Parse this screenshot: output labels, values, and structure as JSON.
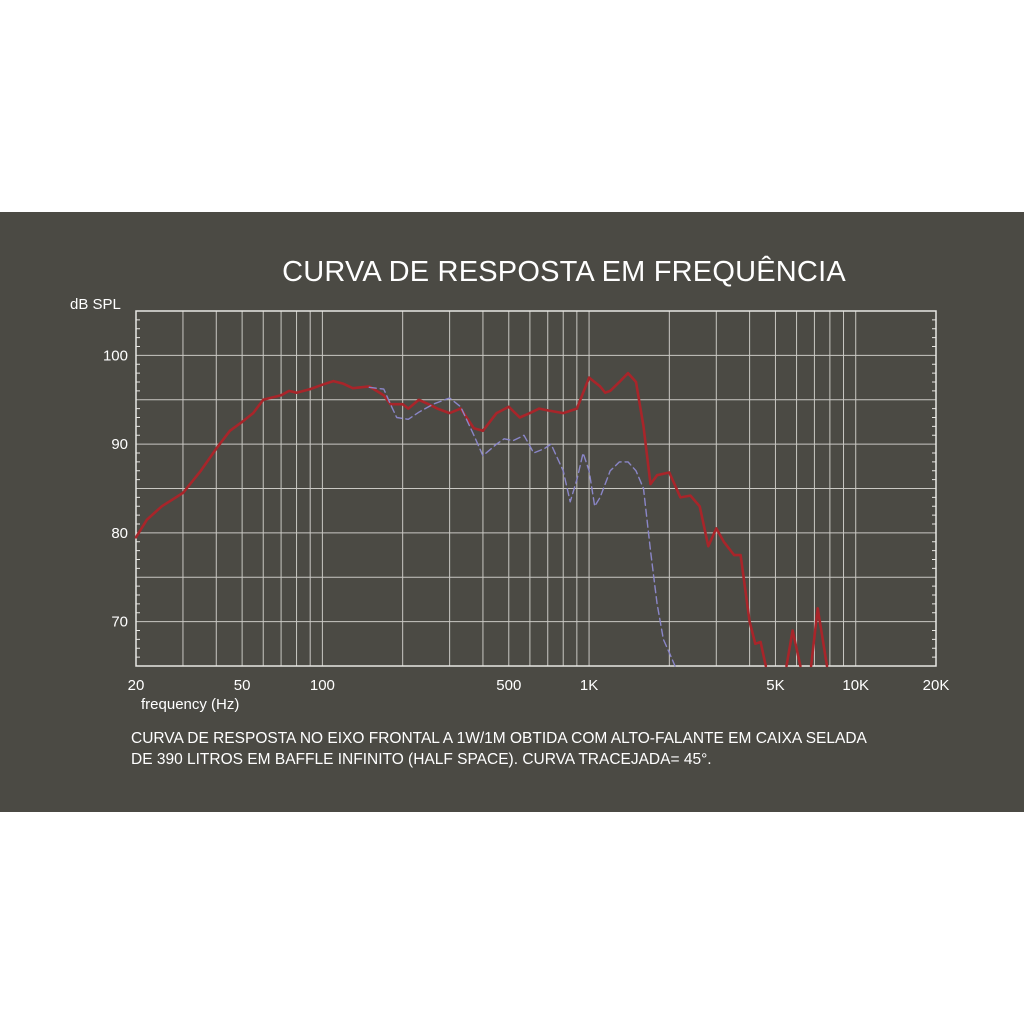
{
  "chart_data": {
    "type": "line",
    "title": "CURVA DE RESPOSTA EM FREQUÊNCIA",
    "xlabel": "frequency (Hz)",
    "ylabel": "dB SPL",
    "x_scale": "log",
    "xlim": [
      20,
      20000
    ],
    "ylim": [
      65,
      105
    ],
    "grid": true,
    "x_ticks": [
      {
        "value": 20,
        "label": "20"
      },
      {
        "value": 50,
        "label": "50"
      },
      {
        "value": 100,
        "label": "100"
      },
      {
        "value": 500,
        "label": "500"
      },
      {
        "value": 1000,
        "label": "1K"
      },
      {
        "value": 5000,
        "label": "5K"
      },
      {
        "value": 10000,
        "label": "10K"
      },
      {
        "value": 20000,
        "label": "20K"
      }
    ],
    "y_ticks": [
      {
        "value": 70,
        "label": "70"
      },
      {
        "value": 80,
        "label": "80"
      },
      {
        "value": 90,
        "label": "90"
      },
      {
        "value": 100,
        "label": "100"
      }
    ],
    "series": [
      {
        "style": "solid",
        "color": "#a8252a",
        "points": [
          [
            20,
            79.5
          ],
          [
            22,
            81.5
          ],
          [
            25,
            83
          ],
          [
            30,
            84.5
          ],
          [
            35,
            87
          ],
          [
            40,
            89.5
          ],
          [
            45,
            91.5
          ],
          [
            50,
            92.5
          ],
          [
            55,
            93.5
          ],
          [
            60,
            95
          ],
          [
            70,
            95.5
          ],
          [
            75,
            96
          ],
          [
            80,
            95.8
          ],
          [
            90,
            96.2
          ],
          [
            100,
            96.7
          ],
          [
            110,
            97.1
          ],
          [
            120,
            96.8
          ],
          [
            130,
            96.3
          ],
          [
            150,
            96.5
          ],
          [
            170,
            95.5
          ],
          [
            180,
            94.5
          ],
          [
            200,
            94.5
          ],
          [
            210,
            94
          ],
          [
            230,
            95
          ],
          [
            250,
            94.5
          ],
          [
            270,
            94
          ],
          [
            300,
            93.5
          ],
          [
            330,
            94
          ],
          [
            370,
            91.8
          ],
          [
            400,
            91.5
          ],
          [
            450,
            93.5
          ],
          [
            500,
            94.2
          ],
          [
            550,
            93
          ],
          [
            600,
            93.5
          ],
          [
            650,
            94
          ],
          [
            700,
            93.8
          ],
          [
            800,
            93.5
          ],
          [
            900,
            94
          ],
          [
            1000,
            97.5
          ],
          [
            1100,
            96.5
          ],
          [
            1150,
            95.8
          ],
          [
            1200,
            96
          ],
          [
            1300,
            97
          ],
          [
            1400,
            98
          ],
          [
            1500,
            97
          ],
          [
            1600,
            92
          ],
          [
            1700,
            85.5
          ],
          [
            1800,
            86.5
          ],
          [
            2000,
            86.8
          ],
          [
            2200,
            84
          ],
          [
            2400,
            84.2
          ],
          [
            2600,
            83
          ],
          [
            2800,
            78.5
          ],
          [
            3000,
            80.5
          ],
          [
            3200,
            79
          ],
          [
            3500,
            77.5
          ],
          [
            3700,
            77.5
          ],
          [
            4000,
            70
          ],
          [
            4200,
            67.5
          ],
          [
            4400,
            67.7
          ],
          [
            4600,
            65
          ]
        ]
      },
      {
        "style": "solid",
        "color": "#a8252a",
        "points": [
          [
            5500,
            65
          ],
          [
            5800,
            69
          ],
          [
            6200,
            65
          ]
        ]
      },
      {
        "style": "solid",
        "color": "#a8252a",
        "points": [
          [
            6800,
            65
          ],
          [
            7200,
            71.5
          ],
          [
            7800,
            65
          ]
        ]
      },
      {
        "style": "dashed",
        "color": "#8a86c8",
        "points": [
          [
            150,
            96.4
          ],
          [
            170,
            96.2
          ],
          [
            180,
            94.5
          ],
          [
            190,
            93
          ],
          [
            210,
            92.8
          ],
          [
            230,
            93.6
          ],
          [
            260,
            94.5
          ],
          [
            300,
            95.2
          ],
          [
            330,
            94.2
          ],
          [
            370,
            91
          ],
          [
            400,
            88.7
          ],
          [
            450,
            90
          ],
          [
            480,
            90.6
          ],
          [
            520,
            90.4
          ],
          [
            570,
            91
          ],
          [
            620,
            89
          ],
          [
            680,
            89.5
          ],
          [
            720,
            90
          ],
          [
            800,
            87
          ],
          [
            850,
            83.5
          ],
          [
            900,
            86
          ],
          [
            950,
            89
          ],
          [
            1000,
            87
          ],
          [
            1050,
            83
          ],
          [
            1100,
            84
          ],
          [
            1200,
            87
          ],
          [
            1300,
            88
          ],
          [
            1400,
            88
          ],
          [
            1500,
            87
          ],
          [
            1600,
            85
          ],
          [
            1700,
            78
          ],
          [
            1800,
            72
          ],
          [
            1900,
            68
          ],
          [
            2000,
            66.5
          ],
          [
            2100,
            65
          ]
        ]
      }
    ]
  },
  "caption": {
    "line1": "CURVA DE RESPOSTA NO EIXO FRONTAL A 1W/1M OBTIDA COM ALTO-FALANTE EM CAIXA SELADA",
    "line2": "DE 390 LITROS EM BAFFLE INFINITO (HALF SPACE). CURVA TRACEJADA= 45°."
  }
}
